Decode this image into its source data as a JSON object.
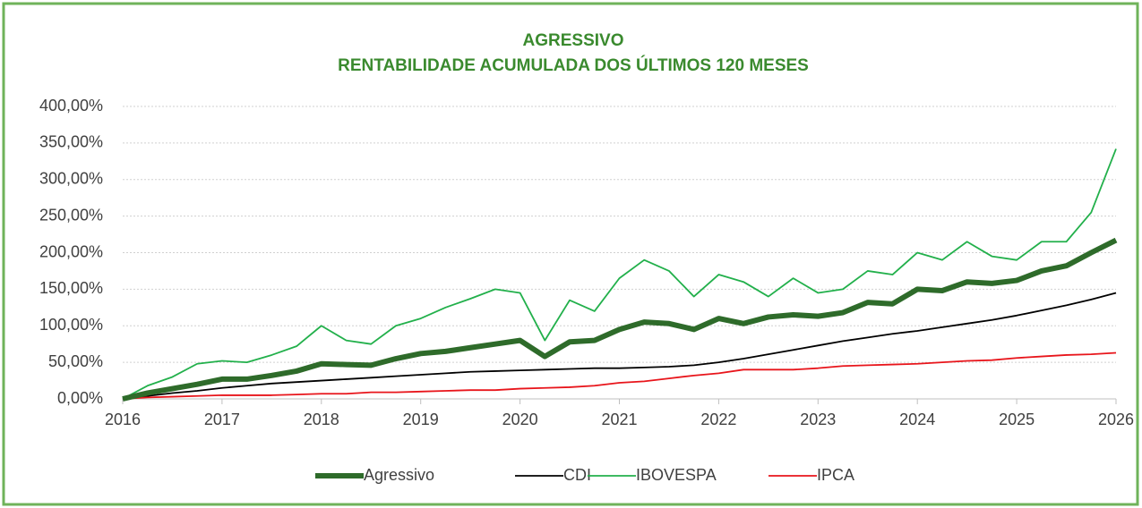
{
  "chart_data": {
    "type": "line",
    "title": "AGRESSIVO",
    "subtitle": "RENTABILIDADE ACUMULADA DOS ÚLTIMOS 120 MESES",
    "x": [
      2016,
      2016.25,
      2016.5,
      2016.75,
      2017,
      2017.25,
      2017.5,
      2017.75,
      2018,
      2018.25,
      2018.5,
      2018.75,
      2019,
      2019.25,
      2019.5,
      2019.75,
      2020,
      2020.25,
      2020.5,
      2020.75,
      2021,
      2021.25,
      2021.5,
      2021.75,
      2022,
      2022.25,
      2022.5,
      2022.75,
      2023,
      2023.25,
      2023.5,
      2023.75,
      2024,
      2024.25,
      2024.5,
      2024.75,
      2025,
      2025.25,
      2025.5,
      2025.75,
      2026
    ],
    "series": [
      {
        "name": "Agressivo",
        "color": "#2e6b2a",
        "width": 6,
        "values": [
          0,
          8,
          14,
          20,
          27,
          27,
          32,
          38,
          48,
          47,
          46,
          55,
          62,
          65,
          70,
          75,
          80,
          58,
          78,
          80,
          95,
          105,
          103,
          95,
          110,
          103,
          112,
          115,
          113,
          118,
          132,
          130,
          150,
          148,
          160,
          158,
          162,
          175,
          182,
          200,
          217
        ]
      },
      {
        "name": "CDI",
        "color": "#000000",
        "width": 1.8,
        "values": [
          0,
          4,
          8,
          11,
          15,
          18,
          21,
          23,
          25,
          27,
          29,
          31,
          33,
          35,
          37,
          38,
          39,
          40,
          41,
          42,
          42,
          43,
          44,
          46,
          50,
          55,
          61,
          67,
          73,
          79,
          84,
          89,
          93,
          98,
          103,
          108,
          114,
          121,
          128,
          136,
          145
        ]
      },
      {
        "name": "IBOVESPA",
        "color": "#22b04b",
        "width": 1.8,
        "values": [
          0,
          18,
          30,
          48,
          52,
          50,
          60,
          72,
          100,
          80,
          75,
          100,
          110,
          125,
          137,
          150,
          145,
          80,
          135,
          120,
          165,
          190,
          175,
          140,
          170,
          160,
          140,
          165,
          145,
          150,
          175,
          170,
          200,
          190,
          215,
          195,
          190,
          215,
          215,
          255,
          342
        ]
      },
      {
        "name": "IPCA",
        "color": "#e8151b",
        "width": 1.8,
        "values": [
          0,
          2,
          3,
          4,
          5,
          5,
          5,
          6,
          7,
          7,
          9,
          9,
          10,
          11,
          12,
          12,
          14,
          15,
          16,
          18,
          22,
          24,
          28,
          32,
          35,
          40,
          40,
          40,
          42,
          45,
          46,
          47,
          48,
          50,
          52,
          53,
          56,
          58,
          60,
          61,
          63
        ]
      }
    ],
    "xlim": [
      2016,
      2026
    ],
    "xticks": [
      2016,
      2017,
      2018,
      2019,
      2020,
      2021,
      2022,
      2023,
      2024,
      2025,
      2026
    ],
    "ylim": [
      0,
      400
    ],
    "yticks": [
      {
        "value": 0,
        "label": "0,00%"
      },
      {
        "value": 50,
        "label": "50,00%"
      },
      {
        "value": 100,
        "label": "100,00%"
      },
      {
        "value": 150,
        "label": "150,00%"
      },
      {
        "value": 200,
        "label": "200,00%"
      },
      {
        "value": 250,
        "label": "250,00%"
      },
      {
        "value": 300,
        "label": "300,00%"
      },
      {
        "value": 350,
        "label": "350,00%"
      },
      {
        "value": 400,
        "label": "400,00%"
      }
    ],
    "grid": true,
    "legend": "bottom"
  }
}
